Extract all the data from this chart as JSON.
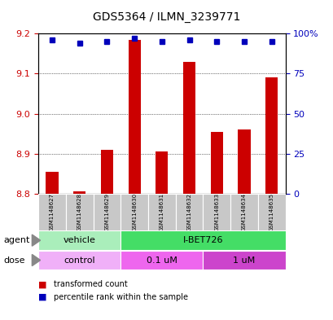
{
  "title": "GDS5364 / ILMN_3239771",
  "samples": [
    "GSM1148627",
    "GSM1148628",
    "GSM1148629",
    "GSM1148630",
    "GSM1148631",
    "GSM1148632",
    "GSM1148633",
    "GSM1148634",
    "GSM1148635"
  ],
  "bar_values": [
    8.855,
    8.805,
    8.91,
    9.185,
    8.905,
    9.13,
    8.955,
    8.96,
    9.09
  ],
  "bar_base": 8.8,
  "percentile_values": [
    96,
    94,
    95,
    97,
    95,
    96,
    95,
    95,
    95
  ],
  "ylim_left": [
    8.8,
    9.2
  ],
  "ylim_right": [
    0,
    100
  ],
  "yticks_left": [
    8.8,
    8.9,
    9.0,
    9.1,
    9.2
  ],
  "yticks_right": [
    0,
    25,
    50,
    75,
    100
  ],
  "ytick_labels_right": [
    "0",
    "25",
    "50",
    "75",
    "100%"
  ],
  "bar_color": "#cc0000",
  "dot_color": "#0000bb",
  "agent_groups": [
    {
      "label": "vehicle",
      "start": 0,
      "end": 3,
      "color": "#aaeebb"
    },
    {
      "label": "I-BET726",
      "start": 3,
      "end": 9,
      "color": "#44dd66"
    }
  ],
  "dose_groups": [
    {
      "label": "control",
      "start": 0,
      "end": 3,
      "color": "#f0b0f8"
    },
    {
      "label": "0.1 uM",
      "start": 3,
      "end": 6,
      "color": "#ee66ee"
    },
    {
      "label": "1 uM",
      "start": 6,
      "end": 9,
      "color": "#cc44cc"
    }
  ],
  "legend_items": [
    {
      "color": "#cc0000",
      "label": "transformed count"
    },
    {
      "color": "#0000bb",
      "label": "percentile rank within the sample"
    }
  ],
  "bg_color": "#ffffff",
  "grid_color": "#000000",
  "axis_color_left": "#cc0000",
  "axis_color_right": "#0000bb",
  "sample_box_color": "#c8c8c8",
  "agent_label": "agent",
  "dose_label": "dose",
  "title_fontsize": 10,
  "tick_fontsize": 8,
  "sample_fontsize": 5,
  "legend_fontsize": 7,
  "label_fontsize": 9,
  "bar_width": 0.45
}
